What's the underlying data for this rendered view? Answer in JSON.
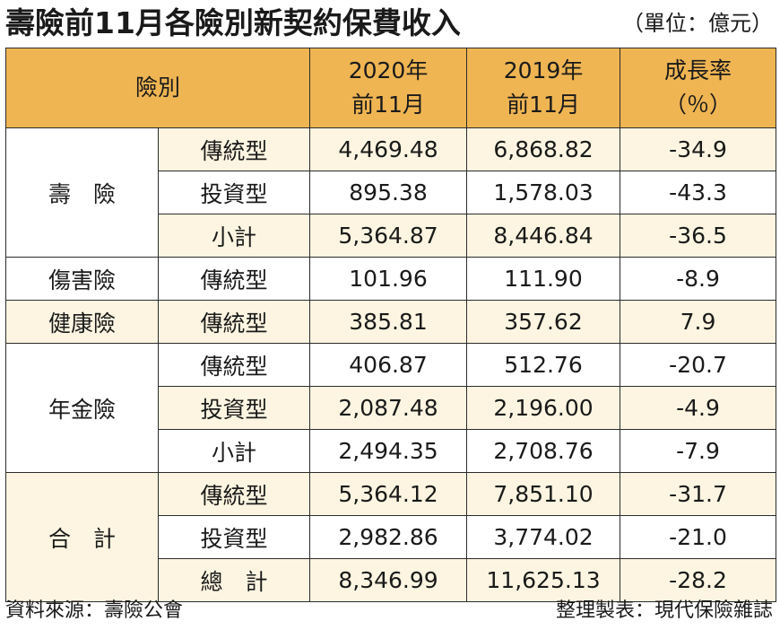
{
  "title": "壽險前11月各險別新契約保費收入",
  "unit": "（單位：億元）",
  "header": {
    "category": "險別",
    "col2020_line1": "2020年",
    "col2020_line2": "前11月",
    "col2019_line1": "2019年",
    "col2019_line2": "前11月",
    "growth_line1": "成長率",
    "growth_line2": "（％）"
  },
  "rows": [
    {
      "group": "壽　險",
      "type": "傳統型",
      "v2020": "4,469.48",
      "v2019": "6,868.82",
      "growth": "-34.9"
    },
    {
      "group": "",
      "type": "投資型",
      "v2020": "895.38",
      "v2019": "1,578.03",
      "growth": "-43.3"
    },
    {
      "group": "",
      "type": "小計",
      "v2020": "5,364.87",
      "v2019": "8,446.84",
      "growth": "-36.5"
    },
    {
      "group": "傷害險",
      "type": "傳統型",
      "v2020": "101.96",
      "v2019": "111.90",
      "growth": "-8.9"
    },
    {
      "group": "健康險",
      "type": "傳統型",
      "v2020": "385.81",
      "v2019": "357.62",
      "growth": "7.9"
    },
    {
      "group": "年金險",
      "type": "傳統型",
      "v2020": "406.87",
      "v2019": "512.76",
      "growth": "-20.7"
    },
    {
      "group": "",
      "type": "投資型",
      "v2020": "2,087.48",
      "v2019": "2,196.00",
      "growth": "-4.9"
    },
    {
      "group": "",
      "type": "小計",
      "v2020": "2,494.35",
      "v2019": "2,708.76",
      "growth": "-7.9"
    },
    {
      "group": "合　計",
      "type": "傳統型",
      "v2020": "5,364.12",
      "v2019": "7,851.10",
      "growth": "-31.7"
    },
    {
      "group": "",
      "type": "投資型",
      "v2020": "2,982.86",
      "v2019": "3,774.02",
      "growth": "-21.0"
    },
    {
      "group": "",
      "type": "總　計",
      "v2020": "8,346.99",
      "v2019": "11,625.13",
      "growth": "-28.2"
    }
  ],
  "footer": {
    "source": "資料來源：壽險公會",
    "compiler": "整理製表：現代保險雜誌"
  },
  "colors": {
    "header_bg": "#efb553",
    "shade_row": "#fdf5e1"
  }
}
